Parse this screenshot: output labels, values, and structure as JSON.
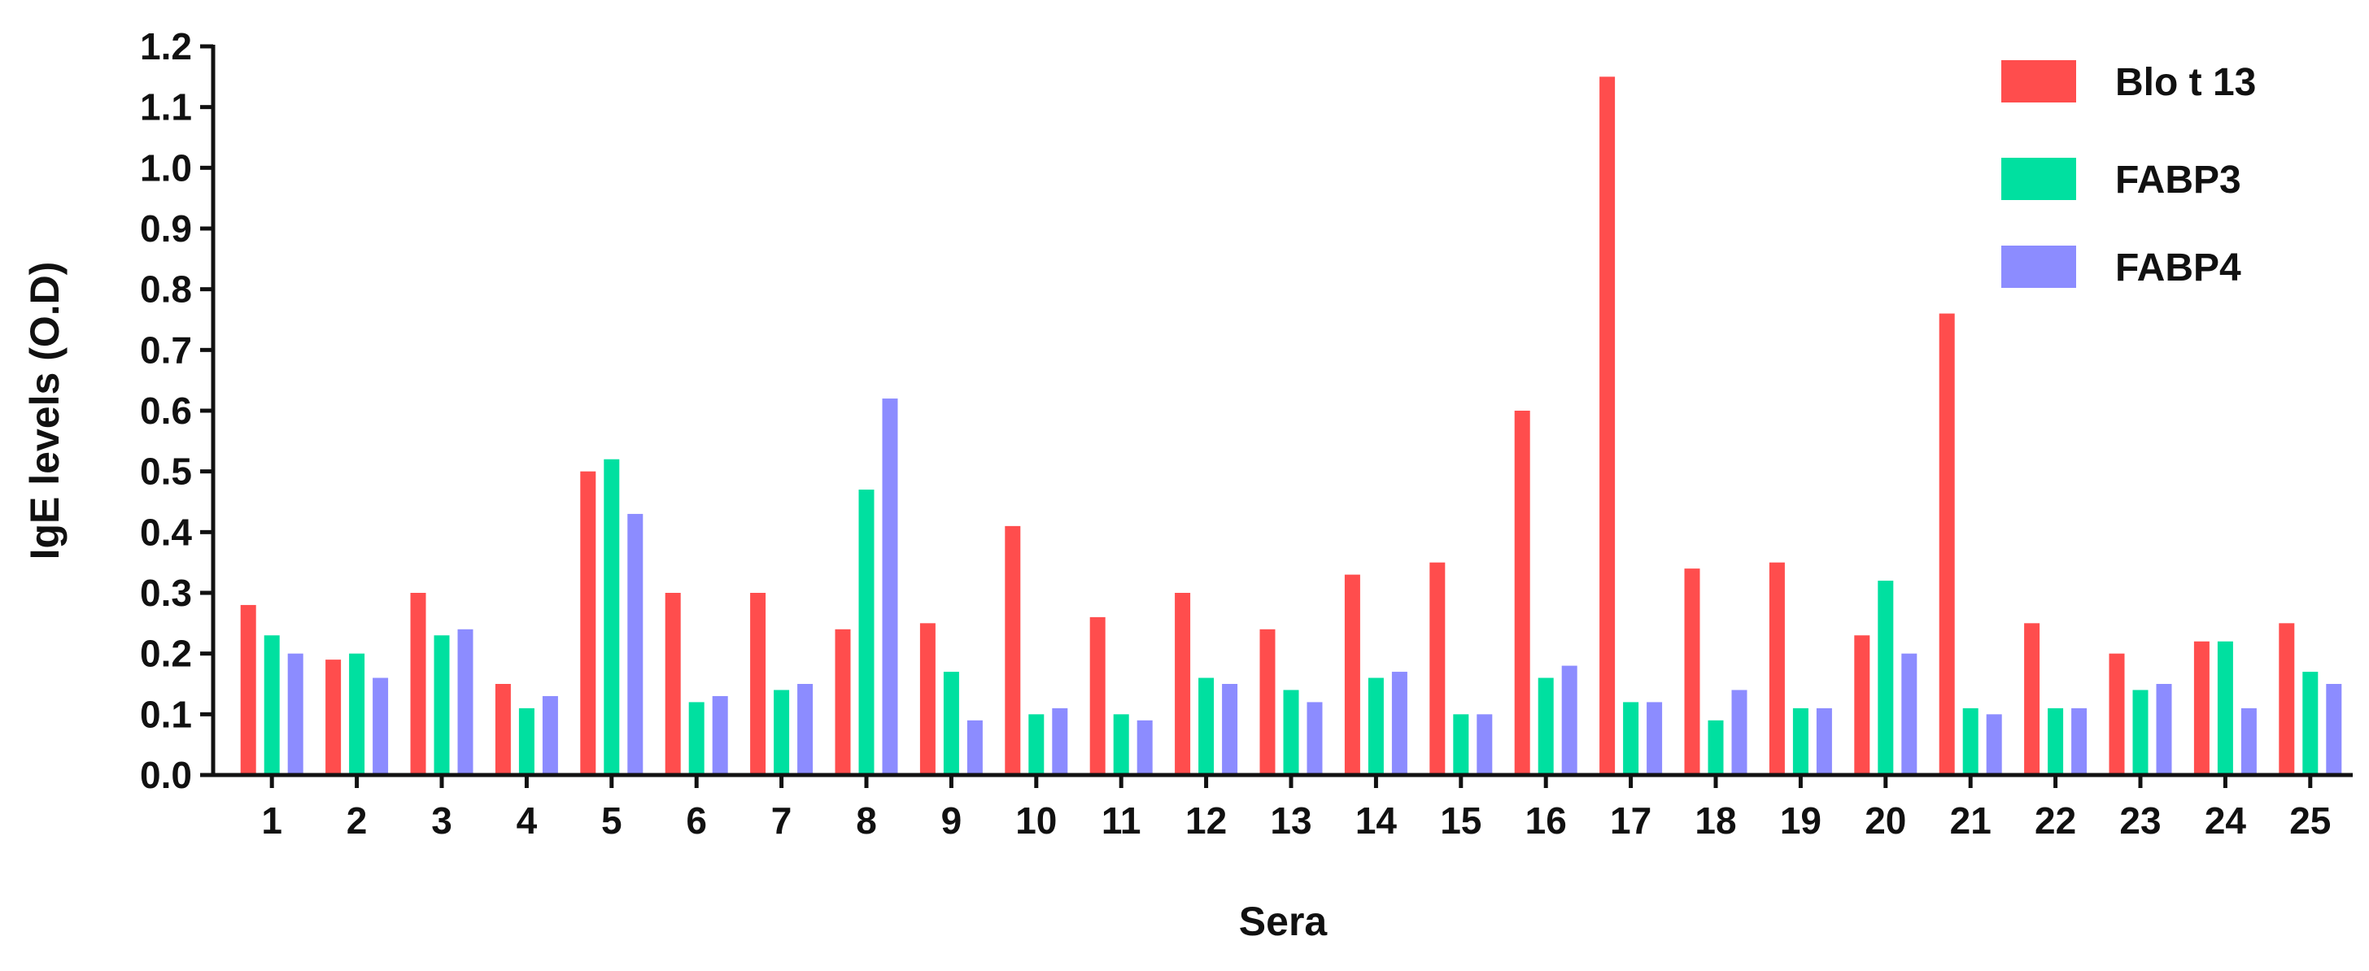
{
  "chart_data": {
    "type": "bar",
    "title": "",
    "xlabel": "Sera",
    "ylabel": "IgE levels (O.D)",
    "ylim": [
      0.0,
      1.2
    ],
    "yticks": [
      "0.0",
      "0.1",
      "0.2",
      "0.3",
      "0.4",
      "0.5",
      "0.6",
      "0.7",
      "0.8",
      "0.9",
      "1.0",
      "1.1",
      "1.2"
    ],
    "categories": [
      "1",
      "2",
      "3",
      "4",
      "5",
      "6",
      "7",
      "8",
      "9",
      "10",
      "11",
      "12",
      "13",
      "14",
      "15",
      "16",
      "17",
      "18",
      "19",
      "20",
      "21",
      "22",
      "23",
      "24",
      "25"
    ],
    "legend_position": "top-right",
    "grid": false,
    "series": [
      {
        "name": "Blo t 13",
        "color": "#ff4d4d",
        "values": [
          0.28,
          0.19,
          0.3,
          0.15,
          0.5,
          0.3,
          0.3,
          0.24,
          0.25,
          0.41,
          0.26,
          0.3,
          0.24,
          0.33,
          0.35,
          0.6,
          1.15,
          0.34,
          0.35,
          0.23,
          0.76,
          0.25,
          0.2,
          0.22,
          0.25
        ]
      },
      {
        "name": "FABP3",
        "color": "#00e0a0",
        "values": [
          0.23,
          0.2,
          0.23,
          0.11,
          0.52,
          0.12,
          0.14,
          0.47,
          0.17,
          0.1,
          0.1,
          0.16,
          0.14,
          0.16,
          0.1,
          0.16,
          0.12,
          0.09,
          0.11,
          0.32,
          0.11,
          0.11,
          0.14,
          0.22,
          0.17
        ]
      },
      {
        "name": "FABP4",
        "color": "#8c8cff",
        "values": [
          0.2,
          0.16,
          0.24,
          0.13,
          0.43,
          0.13,
          0.15,
          0.62,
          0.09,
          0.11,
          0.09,
          0.15,
          0.12,
          0.17,
          0.1,
          0.18,
          0.12,
          0.14,
          0.11,
          0.2,
          0.1,
          0.11,
          0.15,
          0.11,
          0.15
        ]
      }
    ]
  }
}
